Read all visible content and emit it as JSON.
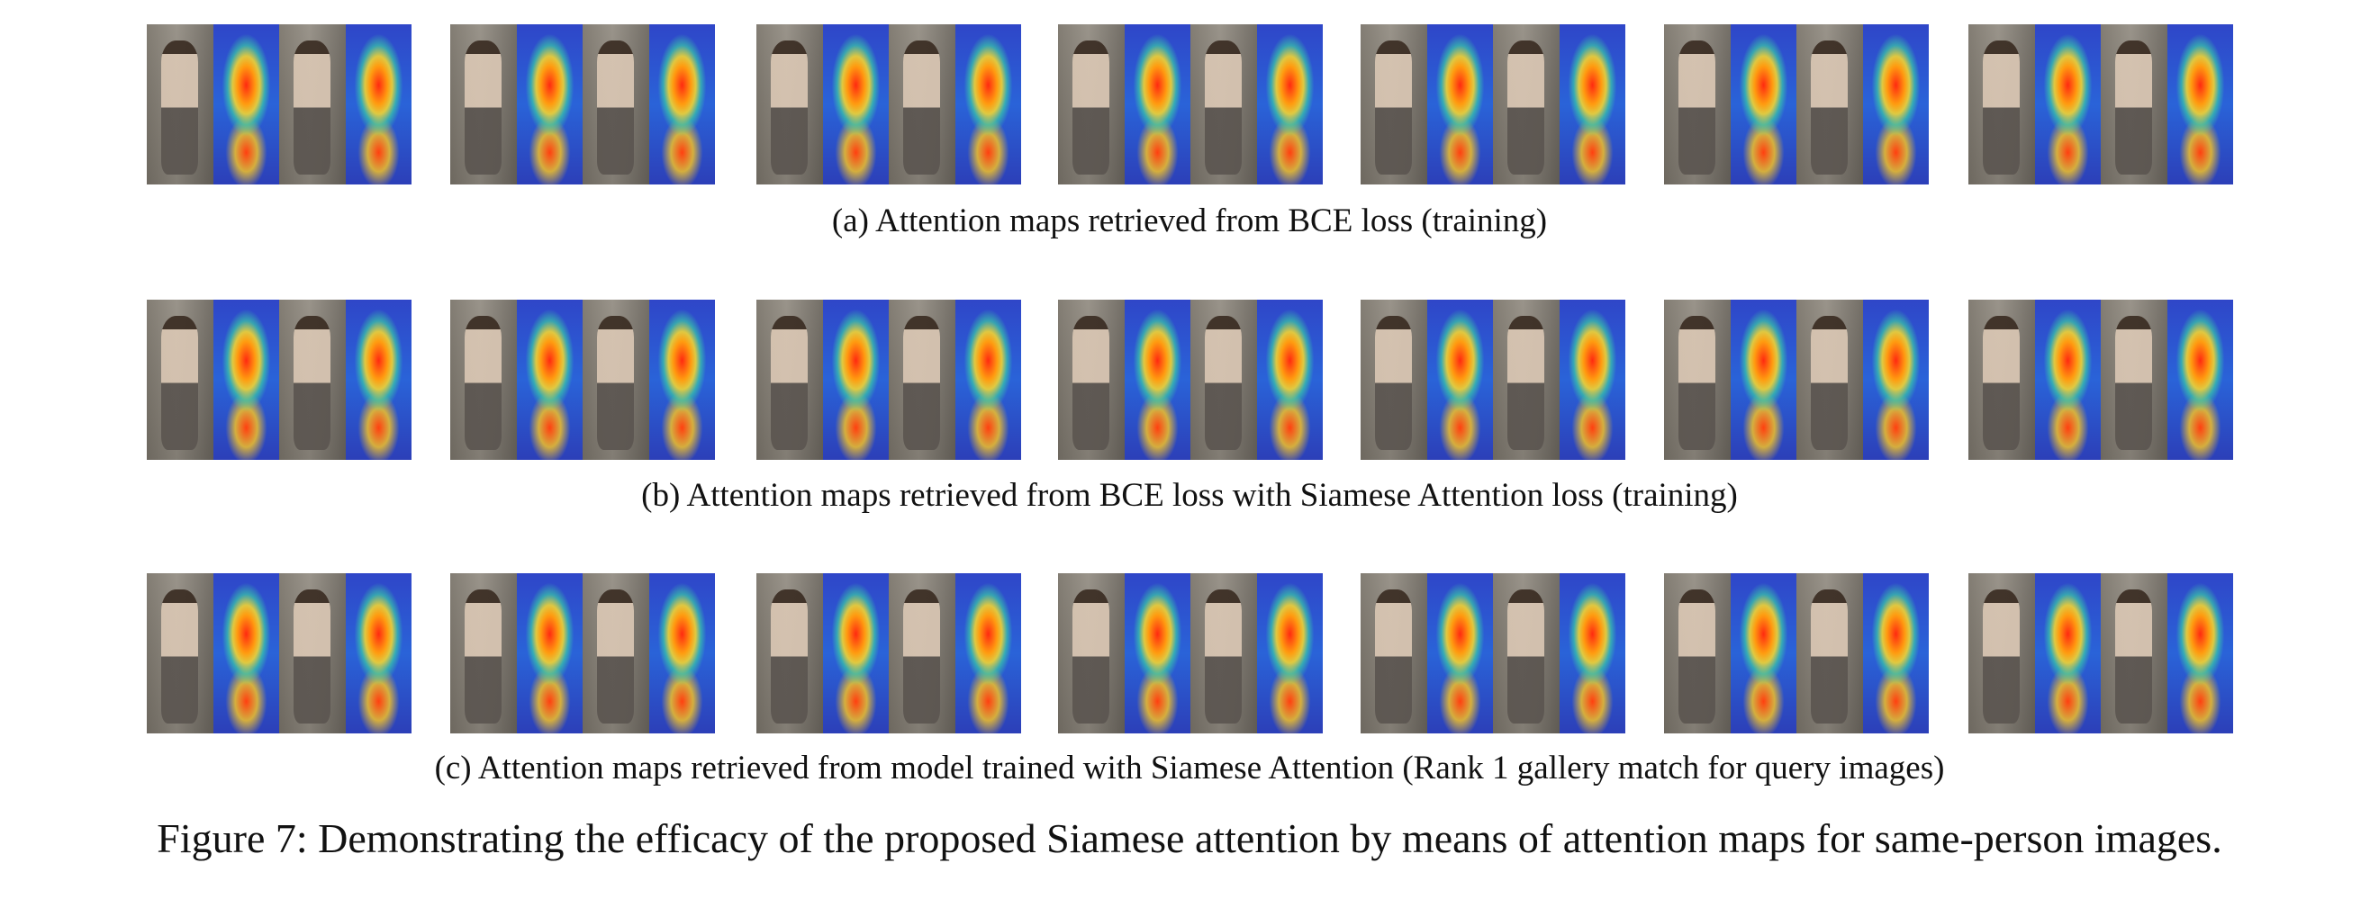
{
  "panels": [
    {
      "id": "a",
      "caption": "(a) Attention maps retrieved from BCE loss (training)",
      "pair_count": 7
    },
    {
      "id": "b",
      "caption": "(b) Attention maps retrieved from BCE loss with Siamese Attention loss (training)",
      "pair_count": 7
    },
    {
      "id": "c",
      "caption": "(c) Attention maps retrieved from model trained with Siamese Attention (Rank 1 gallery match for query images)",
      "pair_count": 7
    }
  ],
  "figure_caption": "Figure 7: Demonstrating the efficacy of the proposed Siamese attention by means of attention maps for same-person images."
}
